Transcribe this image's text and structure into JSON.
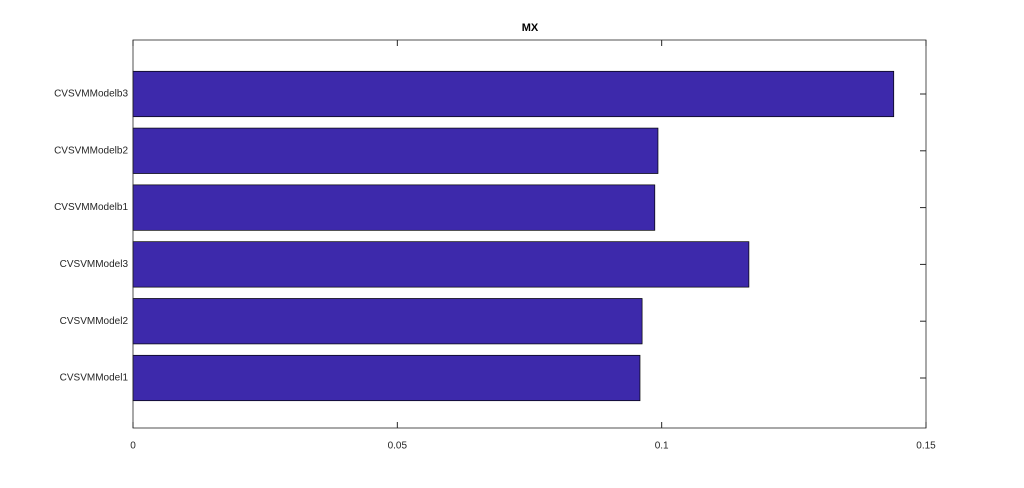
{
  "chart_data": {
    "type": "barh",
    "title": "MX",
    "categories": [
      "CVSVMModel1",
      "CVSVMModel2",
      "CVSVMModel3",
      "CVSVMModelb1",
      "CVSVMModelb2",
      "CVSVMModelb3"
    ],
    "values": [
      0.0959,
      0.0963,
      0.1165,
      0.0987,
      0.0993,
      0.1439
    ],
    "color": "#3d29ab",
    "xlim": [
      0,
      0.15
    ],
    "xticks": [
      0,
      0.05,
      0.1,
      0.15
    ],
    "grid": false
  }
}
